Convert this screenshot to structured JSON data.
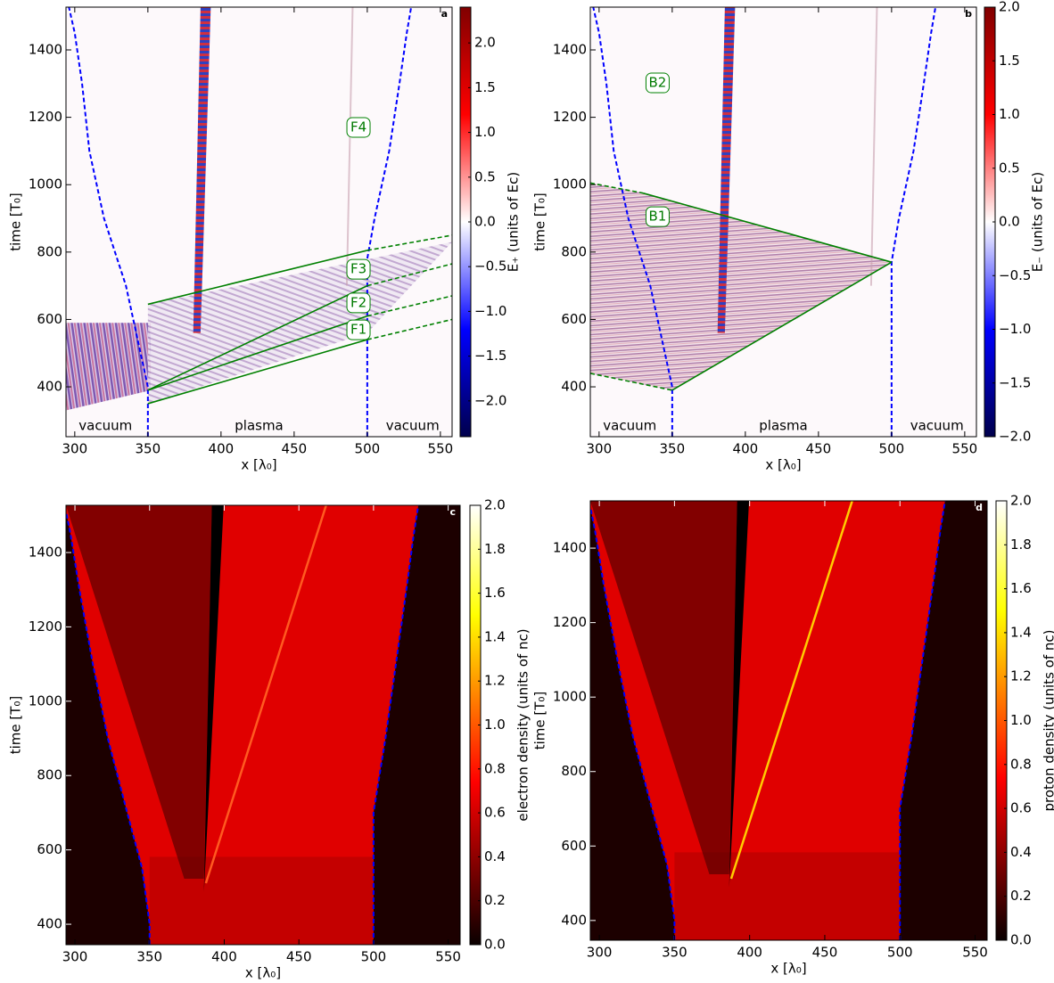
{
  "chart_data": [
    {
      "type": "heatmap",
      "panel_label": "a",
      "colormap": "seismic",
      "xlabel": "x [λ₀]",
      "ylabel": "time [T₀]",
      "colorbar_label": "E₊ (units of Ec)",
      "xlim": [
        294,
        558
      ],
      "ylim": [
        252,
        1527
      ],
      "xticks": [
        300,
        350,
        400,
        450,
        500,
        550
      ],
      "yticks": [
        400,
        600,
        800,
        1000,
        1200,
        1400
      ],
      "clim": [
        -2.4,
        2.4
      ],
      "cticks": [
        {
          "value": -2.0,
          "label": "−2.0"
        },
        {
          "value": -1.5,
          "label": "−1.5"
        },
        {
          "value": -1.0,
          "label": "−1.0"
        },
        {
          "value": -0.5,
          "label": "−0.5"
        },
        {
          "value": 0.0,
          "label": "0.0"
        },
        {
          "value": 0.5,
          "label": "0.5"
        },
        {
          "value": 1.0,
          "label": "1.0"
        },
        {
          "value": 1.5,
          "label": "1.5"
        },
        {
          "value": 2.0,
          "label": "2.0"
        }
      ],
      "boundaries": [
        {
          "color": "#0000ff",
          "x": [
            350,
            350,
            345,
            335,
            320,
            310,
            305,
            300,
            296
          ],
          "y": [
            252,
            400,
            500,
            700,
            900,
            1100,
            1300,
            1450,
            1527
          ]
        },
        {
          "color": "#0000ff",
          "x": [
            500,
            500,
            505,
            515,
            522,
            527,
            530
          ],
          "y": [
            252,
            780,
            900,
            1100,
            1300,
            1450,
            1527
          ]
        }
      ],
      "lines": [
        {
          "color": "#008000",
          "style": "solid",
          "x": [
            350,
            500
          ],
          "y": [
            645,
            805
          ]
        },
        {
          "color": "#008000",
          "style": "dashed",
          "x": [
            500,
            558
          ],
          "y": [
            805,
            850
          ]
        },
        {
          "color": "#008000",
          "style": "solid",
          "x": [
            350,
            500
          ],
          "y": [
            390,
            700
          ]
        },
        {
          "color": "#008000",
          "style": "dashed",
          "x": [
            500,
            558
          ],
          "y": [
            700,
            765
          ]
        },
        {
          "color": "#008000",
          "style": "solid",
          "x": [
            350,
            500
          ],
          "y": [
            390,
            610
          ]
        },
        {
          "color": "#008000",
          "style": "dashed",
          "x": [
            500,
            558
          ],
          "y": [
            610,
            670
          ]
        },
        {
          "color": "#008000",
          "style": "solid",
          "x": [
            350,
            500
          ],
          "y": [
            350,
            540
          ]
        },
        {
          "color": "#008000",
          "style": "dashed",
          "x": [
            500,
            558
          ],
          "y": [
            540,
            600
          ]
        }
      ],
      "annotations": [
        {
          "text": "F4",
          "x": 494,
          "y": 1170,
          "boxed": true
        },
        {
          "text": "F3",
          "x": 494,
          "y": 749,
          "boxed": true
        },
        {
          "text": "F2",
          "x": 494,
          "y": 649,
          "boxed": true
        },
        {
          "text": "F1",
          "x": 494,
          "y": 569,
          "boxed": true
        },
        {
          "text": "vacuum",
          "x": 321,
          "y": 284,
          "boxed": false
        },
        {
          "text": "plasma",
          "x": 426,
          "y": 284,
          "boxed": false
        },
        {
          "text": "vacuum",
          "x": 531,
          "y": 284,
          "boxed": false
        }
      ]
    },
    {
      "type": "heatmap",
      "panel_label": "b",
      "colormap": "seismic",
      "xlabel": "x [λ₀]",
      "ylabel": "time [T₀]",
      "colorbar_label": "E₋ (units of Ec)",
      "xlim": [
        294,
        558
      ],
      "ylim": [
        252,
        1527
      ],
      "xticks": [
        300,
        350,
        400,
        450,
        500,
        550
      ],
      "yticks": [
        400,
        600,
        800,
        1000,
        1200,
        1400
      ],
      "clim": [
        -2,
        2
      ],
      "cticks": [
        {
          "value": -2.0,
          "label": "−2.0"
        },
        {
          "value": -1.5,
          "label": "−1.5"
        },
        {
          "value": -1.0,
          "label": "−1.0"
        },
        {
          "value": -0.5,
          "label": "−0.5"
        },
        {
          "value": 0.0,
          "label": "0.0"
        },
        {
          "value": 0.5,
          "label": "0.5"
        },
        {
          "value": 1.0,
          "label": "1.0"
        },
        {
          "value": 1.5,
          "label": "1.5"
        },
        {
          "value": 2.0,
          "label": "2.0"
        }
      ],
      "boundaries": [
        {
          "color": "#0000ff",
          "x": [
            350,
            350,
            345,
            335,
            320,
            310,
            305,
            300,
            296
          ],
          "y": [
            252,
            400,
            500,
            700,
            900,
            1100,
            1300,
            1450,
            1527
          ]
        },
        {
          "color": "#0000ff",
          "x": [
            500,
            500,
            505,
            515,
            522,
            527,
            530
          ],
          "y": [
            252,
            770,
            900,
            1100,
            1300,
            1450,
            1527
          ]
        }
      ],
      "lines": [
        {
          "color": "#008000",
          "style": "solid",
          "x": [
            350,
            500
          ],
          "y": [
            390,
            770
          ]
        },
        {
          "color": "#008000",
          "style": "solid",
          "x": [
            330,
            500
          ],
          "y": [
            975,
            770
          ]
        },
        {
          "color": "#008000",
          "style": "dashed",
          "x": [
            294,
            330
          ],
          "y": [
            1005,
            975
          ]
        },
        {
          "color": "#008000",
          "style": "dashed",
          "x": [
            294,
            350
          ],
          "y": [
            440,
            390
          ]
        }
      ],
      "annotations": [
        {
          "text": "B2",
          "x": 340,
          "y": 1302,
          "boxed": true
        },
        {
          "text": "B1",
          "x": 340,
          "y": 905,
          "boxed": true
        },
        {
          "text": "vacuum",
          "x": 321,
          "y": 284,
          "boxed": false
        },
        {
          "text": "plasma",
          "x": 426,
          "y": 284,
          "boxed": false
        },
        {
          "text": "vacuum",
          "x": 531,
          "y": 284,
          "boxed": false
        }
      ]
    },
    {
      "type": "heatmap",
      "panel_label": "c",
      "colormap": "hot",
      "xlabel": "x [λ₀]",
      "ylabel": "time [T₀]",
      "colorbar_label": "electron density (units of nc)",
      "xlim": [
        294,
        558
      ],
      "ylim": [
        345,
        1527
      ],
      "xticks": [
        300,
        350,
        400,
        450,
        500,
        550
      ],
      "yticks": [
        400,
        600,
        800,
        1000,
        1200,
        1400
      ],
      "clim": [
        0,
        2
      ],
      "cticks": [
        {
          "value": 0.0,
          "label": "0.0"
        },
        {
          "value": 0.2,
          "label": "0.2"
        },
        {
          "value": 0.4,
          "label": "0.4"
        },
        {
          "value": 0.6,
          "label": "0.6"
        },
        {
          "value": 0.8,
          "label": "0.8"
        },
        {
          "value": 1.0,
          "label": "1.0"
        },
        {
          "value": 1.2,
          "label": "1.2"
        },
        {
          "value": 1.4,
          "label": "1.4"
        },
        {
          "value": 1.6,
          "label": "1.6"
        },
        {
          "value": 1.8,
          "label": "1.8"
        },
        {
          "value": 2.0,
          "label": "2.0"
        }
      ],
      "boundaries": [
        {
          "color": "#0000ff",
          "x": [
            350,
            350,
            345,
            335,
            322,
            312,
            303,
            297,
            294
          ],
          "y": [
            345,
            400,
            550,
            700,
            900,
            1100,
            1300,
            1450,
            1510
          ]
        },
        {
          "color": "#0000ff",
          "x": [
            500,
            500,
            508,
            515,
            522,
            527,
            530
          ],
          "y": [
            345,
            700,
            900,
            1100,
            1300,
            1450,
            1527
          ]
        }
      ],
      "lines": [],
      "annotations": []
    },
    {
      "type": "heatmap",
      "panel_label": "d",
      "colormap": "hot",
      "xlabel": "x [λ₀]",
      "ylabel": "time [T₀]",
      "colorbar_label": "proton density (units of nc)",
      "xlim": [
        294,
        558
      ],
      "ylim": [
        347,
        1527
      ],
      "xticks": [
        300,
        350,
        400,
        450,
        500,
        550
      ],
      "yticks": [
        400,
        600,
        800,
        1000,
        1200,
        1400
      ],
      "clim": [
        0,
        2
      ],
      "cticks": [
        {
          "value": 0.0,
          "label": "0.0"
        },
        {
          "value": 0.2,
          "label": "0.2"
        },
        {
          "value": 0.4,
          "label": "0.4"
        },
        {
          "value": 0.6,
          "label": "0.6"
        },
        {
          "value": 0.8,
          "label": "0.8"
        },
        {
          "value": 1.0,
          "label": "1.0"
        },
        {
          "value": 1.2,
          "label": "1.2"
        },
        {
          "value": 1.4,
          "label": "1.4"
        },
        {
          "value": 1.6,
          "label": "1.6"
        },
        {
          "value": 1.8,
          "label": "1.8"
        },
        {
          "value": 2.0,
          "label": "2.0"
        }
      ],
      "boundaries": [
        {
          "color": "#0000ff",
          "x": [
            350,
            350,
            345,
            335,
            322,
            312,
            303,
            297,
            294
          ],
          "y": [
            347,
            400,
            550,
            700,
            900,
            1100,
            1300,
            1450,
            1510
          ]
        },
        {
          "color": "#0000ff",
          "x": [
            500,
            500,
            508,
            515,
            522,
            527,
            530
          ],
          "y": [
            347,
            700,
            900,
            1100,
            1300,
            1450,
            1527
          ]
        }
      ],
      "lines": [],
      "annotations": []
    }
  ]
}
